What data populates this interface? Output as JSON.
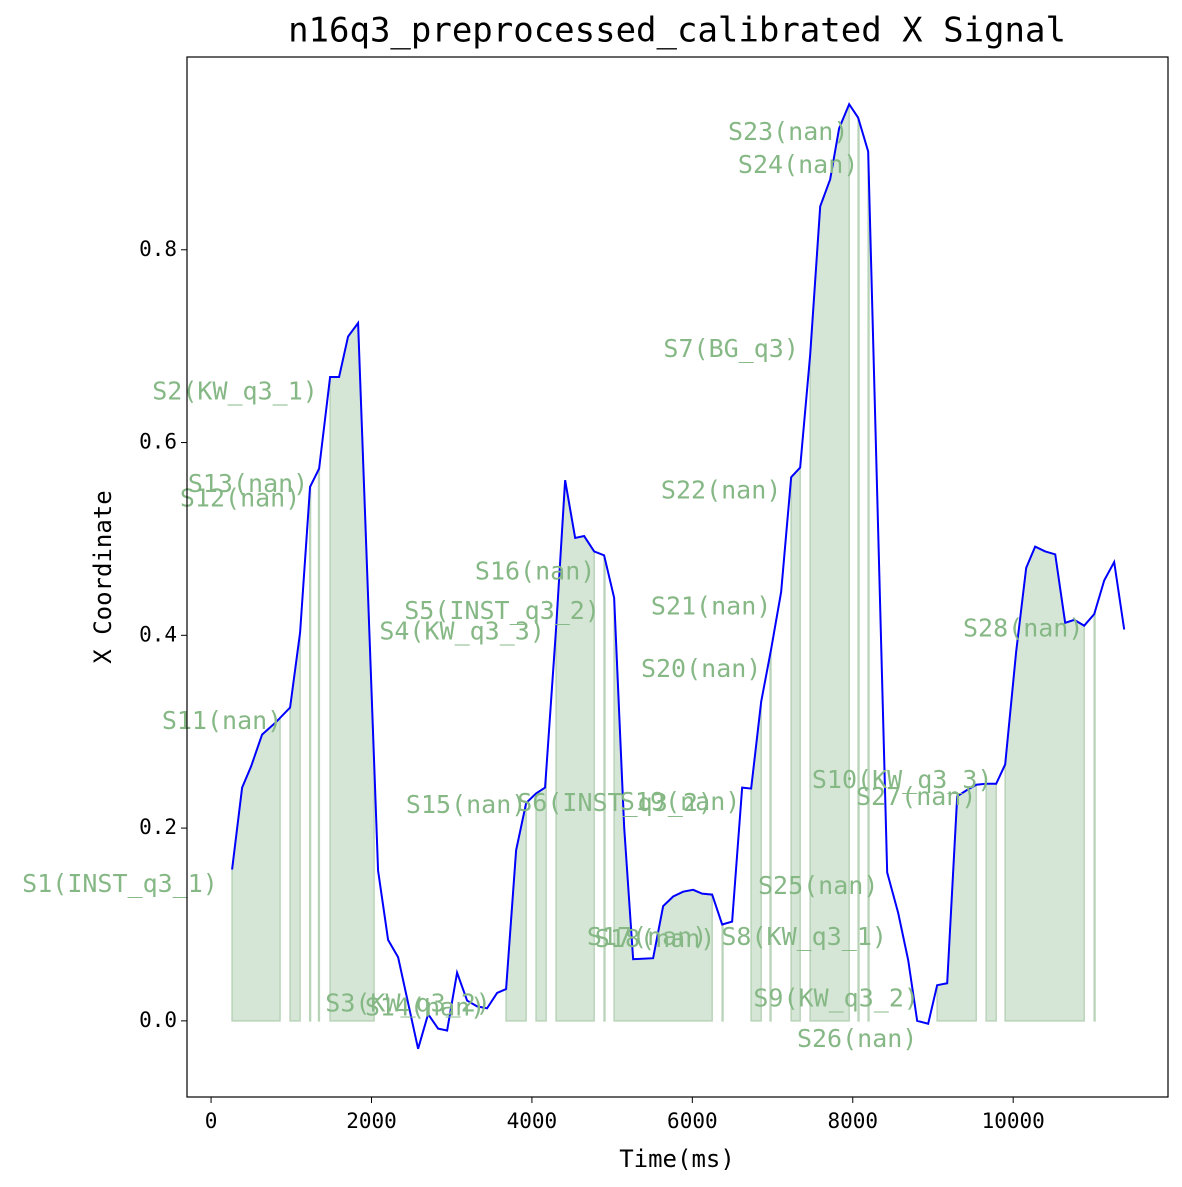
{
  "chart_data": {
    "type": "line",
    "title": "n16q3_preprocessed_calibrated X Signal",
    "x_label": "Time(ms)",
    "y_label": "X Coordinate",
    "color": "#0000ff",
    "fill_color": "#d6e6d6",
    "annotation_color": "#86b886",
    "x": [
      262,
      387,
      499,
      636,
      810,
      985,
      1110,
      1234,
      1347,
      1484,
      1596,
      1708,
      1833,
      2082,
      2207,
      2332,
      2581,
      2706,
      2830,
      2943,
      3067,
      3192,
      3317,
      3441,
      3566,
      3678,
      3803,
      3928,
      4052,
      4164,
      4302,
      4414,
      4539,
      4651,
      4776,
      4900,
      5025,
      5150,
      5262,
      5511,
      5636,
      5761,
      5885,
      6010,
      6122,
      6247,
      6372,
      6496,
      6621,
      6733,
      6858,
      6983,
      7107,
      7232,
      7344,
      7469,
      7594,
      7718,
      7830,
      7955,
      8067,
      8192,
      8429,
      8566,
      8691,
      8803,
      8940,
      9052,
      9177,
      9302,
      9414,
      9539,
      9663,
      9788,
      9900,
      10037,
      10162,
      10274,
      10399,
      10524,
      10648,
      10761,
      10885,
      11010,
      11135,
      11259,
      11384
    ],
    "values": [
      0.157,
      0.242,
      0.264,
      0.297,
      0.31,
      0.325,
      0.403,
      0.554,
      0.573,
      0.668,
      0.668,
      0.71,
      0.724,
      0.156,
      0.084,
      0.066,
      -0.029,
      0.007,
      -0.008,
      -0.01,
      0.05,
      0.021,
      0.015,
      0.013,
      0.029,
      0.033,
      0.177,
      0.226,
      0.236,
      0.242,
      0.408,
      0.561,
      0.501,
      0.503,
      0.487,
      0.483,
      0.439,
      0.201,
      0.064,
      0.065,
      0.119,
      0.129,
      0.134,
      0.136,
      0.132,
      0.131,
      0.1,
      0.103,
      0.242,
      0.241,
      0.331,
      0.386,
      0.445,
      0.564,
      0.574,
      0.691,
      0.845,
      0.873,
      0.926,
      0.951,
      0.937,
      0.902,
      0.154,
      0.112,
      0.063,
      0.0,
      -0.003,
      0.037,
      0.039,
      0.233,
      0.239,
      0.245,
      0.246,
      0.246,
      0.266,
      0.383,
      0.47,
      0.492,
      0.487,
      0.484,
      0.413,
      0.416,
      0.41,
      0.422,
      0.457,
      0.476,
      0.406
    ],
    "segments": [
      {
        "start": 262,
        "end": 860
      },
      {
        "start": 985,
        "end": 1110
      },
      {
        "start": 1230,
        "end": 1240
      },
      {
        "start": 1340,
        "end": 1350
      },
      {
        "start": 1484,
        "end": 2032
      },
      {
        "start": 3678,
        "end": 3928
      },
      {
        "start": 4052,
        "end": 4177
      },
      {
        "start": 4302,
        "end": 4776
      },
      {
        "start": 4900,
        "end": 4910
      },
      {
        "start": 5025,
        "end": 6247
      },
      {
        "start": 6372,
        "end": 6382
      },
      {
        "start": 6733,
        "end": 6858
      },
      {
        "start": 6970,
        "end": 6980
      },
      {
        "start": 7232,
        "end": 7344
      },
      {
        "start": 7469,
        "end": 7955
      },
      {
        "start": 8067,
        "end": 8077
      },
      {
        "start": 8192,
        "end": 8202
      },
      {
        "start": 9052,
        "end": 9539
      },
      {
        "start": 9663,
        "end": 9788
      },
      {
        "start": 9900,
        "end": 10885
      },
      {
        "start": 11010,
        "end": 11020
      }
    ],
    "annotations": [
      {
        "text": "S1(INST_q3_1)",
        "x": -1135,
        "y": 0.141
      },
      {
        "text": "S2(KW_q3_1)",
        "x": 299,
        "y": 0.652
      },
      {
        "text": "S13(nan)",
        "x": 461,
        "y": 0.556
      },
      {
        "text": "S12(nan)",
        "x": 362,
        "y": 0.541
      },
      {
        "text": "S11(nan)",
        "x": 137,
        "y": 0.31
      },
      {
        "text": "S3(KW_q3_2)",
        "x": 2456,
        "y": 0.017
      },
      {
        "text": "S14(nan)",
        "x": 2668,
        "y": 0.013
      },
      {
        "text": "S15(nan)",
        "x": 3180,
        "y": 0.223
      },
      {
        "text": "S5(INST_q3_2)",
        "x": 3628,
        "y": 0.424
      },
      {
        "text": "S4(KW_q3_3)",
        "x": 3130,
        "y": 0.403
      },
      {
        "text": "S16(nan)",
        "x": 4040,
        "y": 0.465
      },
      {
        "text": "S6(INST_q3_2)",
        "x": 5037,
        "y": 0.225
      },
      {
        "text": "S19(nan)",
        "x": 5848,
        "y": 0.226
      },
      {
        "text": "S17(nan)",
        "x": 5436,
        "y": 0.086
      },
      {
        "text": "S18(nan)",
        "x": 5536,
        "y": 0.084
      },
      {
        "text": "S8(KW_q3_1)",
        "x": 7394,
        "y": 0.086
      },
      {
        "text": "S7(BG_q3)",
        "x": 6484,
        "y": 0.696
      },
      {
        "text": "S22(nan)",
        "x": 6359,
        "y": 0.549
      },
      {
        "text": "S21(nan)",
        "x": 6234,
        "y": 0.429
      },
      {
        "text": "S20(nan)",
        "x": 6110,
        "y": 0.364
      },
      {
        "text": "S23(nan)",
        "x": 7195,
        "y": 0.921
      },
      {
        "text": "S24(nan)",
        "x": 7319,
        "y": 0.887
      },
      {
        "text": "S10(KW_q3_3)",
        "x": 8616,
        "y": 0.249
      },
      {
        "text": "S27(nan)",
        "x": 8791,
        "y": 0.231
      },
      {
        "text": "S25(nan)",
        "x": 7569,
        "y": 0.139
      },
      {
        "text": "S9(KW_q3_2)",
        "x": 7793,
        "y": 0.022
      },
      {
        "text": "S26(nan)",
        "x": 8055,
        "y": -0.02
      },
      {
        "text": "S28(nan)",
        "x": 10125,
        "y": 0.406
      }
    ],
    "xlim": [
      -300,
      11930
    ],
    "ylim": [
      -0.079,
      1.0
    ],
    "xticks": [
      0,
      2000,
      4000,
      6000,
      8000,
      10000
    ],
    "yticks": [
      {
        "value": 0,
        "label": "0.0"
      },
      0.2,
      0.4,
      0.6,
      0.8
    ]
  }
}
